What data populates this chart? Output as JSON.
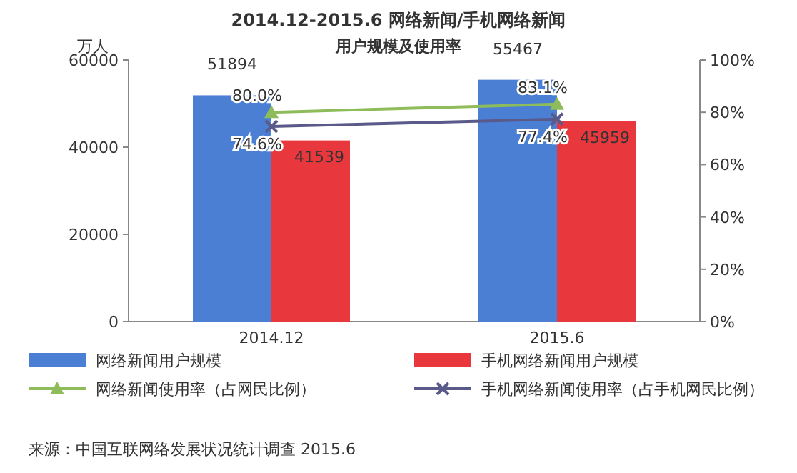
{
  "chart_data": {
    "type": "bar",
    "title": "2014.12-2015.6 网络新闻/手机网络新闻",
    "subtitle": "用户规模及使用率",
    "ylabel": "万人",
    "categories": [
      "2014.12",
      "2015.6"
    ],
    "series": [
      {
        "name": "网络新闻用户规模",
        "color": "#4a7fd4",
        "values": [
          51894,
          55467
        ]
      },
      {
        "name": "手机网络新闻用户规模",
        "color": "#e8383d",
        "values": [
          41539,
          45959
        ]
      },
      {
        "name": "网络新闻使用率（占网民比例）",
        "type": "line",
        "axis": "y2",
        "color": "#8fbc5a",
        "marker": "triangle",
        "values": [
          80.0,
          83.1
        ],
        "value_labels": [
          "80.0%",
          "83.1%"
        ]
      },
      {
        "name": "手机网络新闻使用率（占手机网民比例）",
        "type": "line",
        "axis": "y2",
        "color": "#5a5a8a",
        "marker": "cross",
        "values": [
          74.6,
          77.4
        ],
        "value_labels": [
          "74.6%",
          "77.4%"
        ]
      }
    ],
    "ylim": [
      0,
      60000
    ],
    "yticks": [
      0,
      20000,
      40000,
      60000
    ],
    "y2lim": [
      0,
      100
    ],
    "y2ticks": [
      {
        "value": 0,
        "label": "0%"
      },
      {
        "value": 20,
        "label": "20%"
      },
      {
        "value": 40,
        "label": "40%"
      },
      {
        "value": 60,
        "label": "60%"
      },
      {
        "value": 80,
        "label": "80%"
      },
      {
        "value": 100,
        "label": "100%"
      }
    ],
    "data_labels": true,
    "grid": false,
    "legend": "bottom",
    "annotations": [
      "来源：中国互联网络发展状况统计调查 2015.6"
    ]
  }
}
